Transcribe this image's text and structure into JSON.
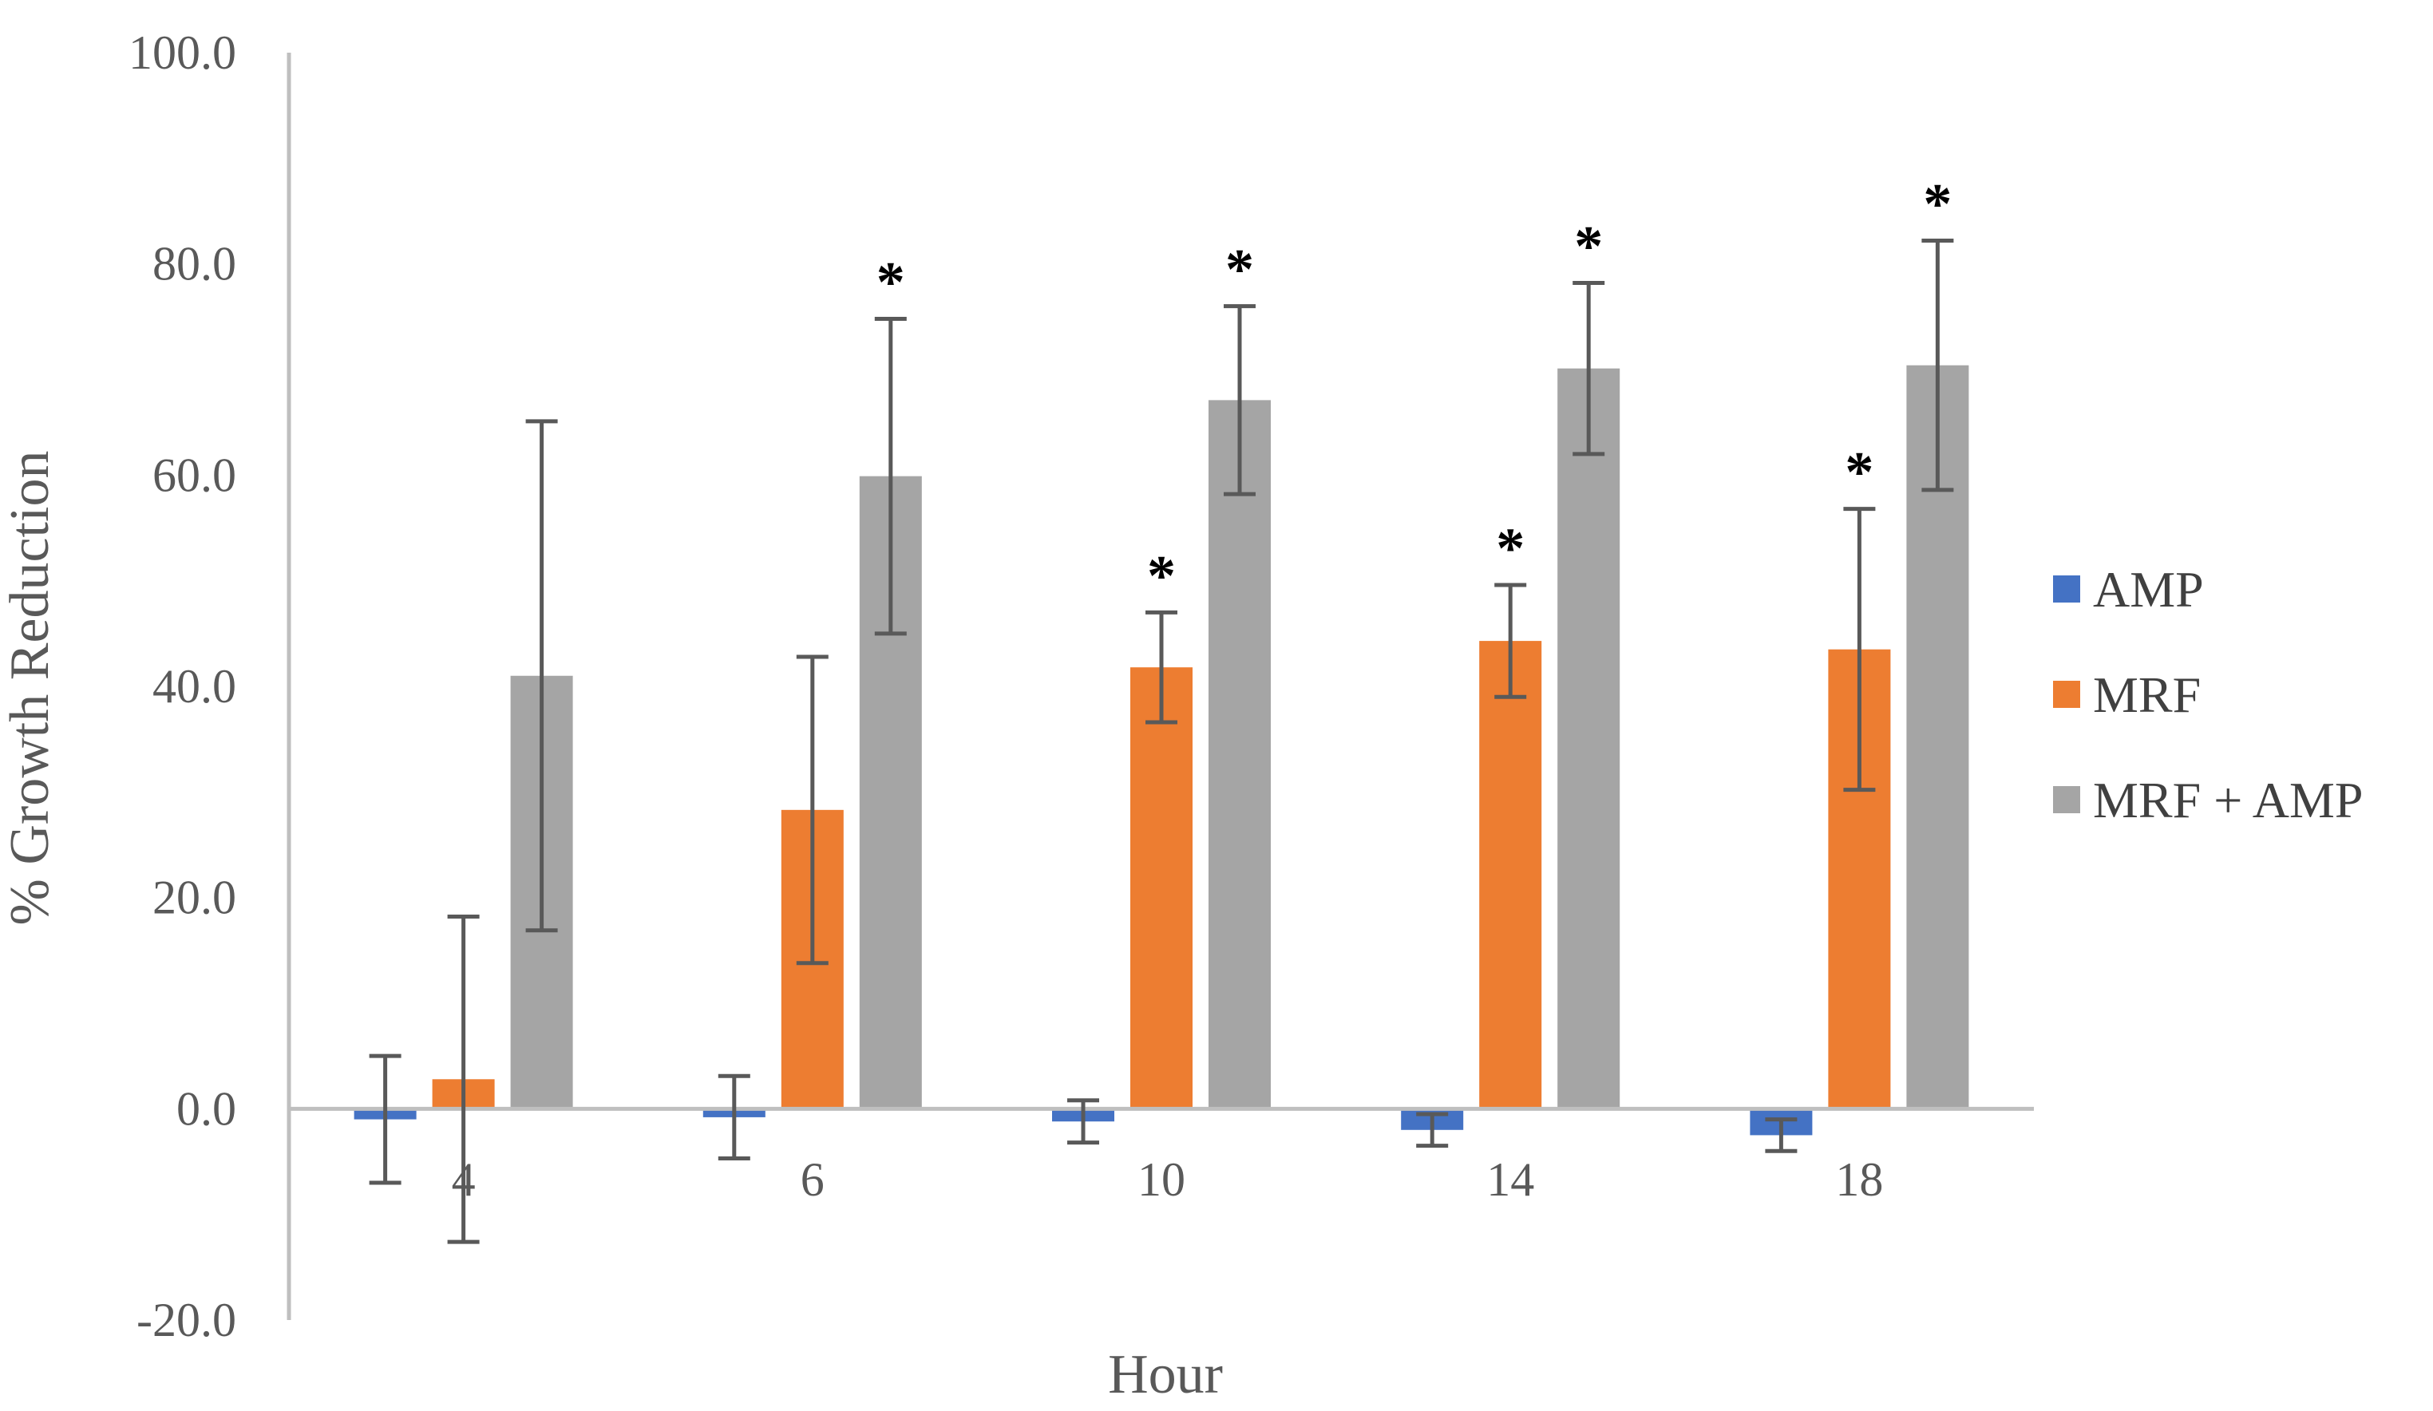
{
  "chart_data": {
    "type": "bar",
    "xlabel": "Hour",
    "ylabel": "% Growth Reduction",
    "categories": [
      "4",
      "6",
      "10",
      "14",
      "18"
    ],
    "ylim": [
      -20,
      100
    ],
    "yticks": [
      -20,
      0,
      20,
      40,
      60,
      80,
      100
    ],
    "ytick_labels": [
      "-20.0",
      "0.0",
      "20.0",
      "40.0",
      "60.0",
      "80.0",
      "100.0"
    ],
    "grid": false,
    "legend_position": "right",
    "series": [
      {
        "name": "AMP",
        "color": "#4472C4",
        "values": [
          -1.0,
          -0.8,
          -1.2,
          -2.0,
          -2.5
        ],
        "error": [
          6.0,
          3.9,
          2.0,
          1.5,
          1.5
        ],
        "significant": [
          false,
          false,
          false,
          false,
          false
        ]
      },
      {
        "name": "MRF",
        "color": "#ED7D31",
        "values": [
          2.8,
          28.3,
          41.8,
          44.3,
          43.5
        ],
        "error": [
          15.4,
          14.5,
          5.2,
          5.3,
          13.3
        ],
        "significant": [
          false,
          false,
          true,
          true,
          true
        ]
      },
      {
        "name": "MRF + AMP",
        "color": "#A5A5A5",
        "values": [
          41.0,
          59.9,
          67.1,
          70.1,
          70.4
        ],
        "error": [
          24.1,
          14.9,
          8.9,
          8.1,
          11.8
        ],
        "significant": [
          false,
          true,
          true,
          true,
          true
        ]
      }
    ],
    "annotation_symbol": "*",
    "axis_color": "#BFBFBF",
    "error_bar_color": "#595959"
  }
}
